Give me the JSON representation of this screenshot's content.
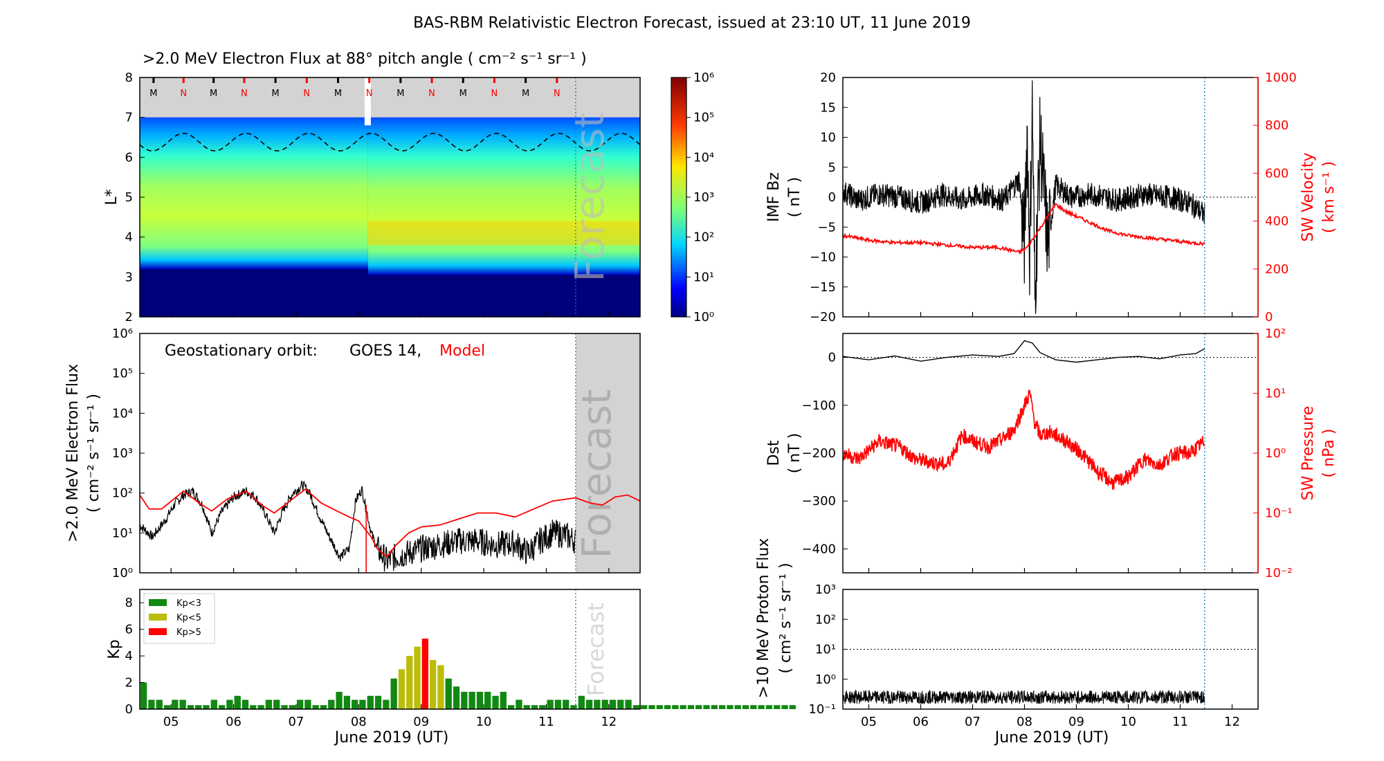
{
  "title": "BAS-RBM Relativistic Electron Forecast, issued at 23:10 UT, 11 June 2019",
  "colors": {
    "model": "#ff0000",
    "obs": "#000000",
    "kp_low": "#118811",
    "kp_mid": "#bcbc0a",
    "kp_high": "#ff0000",
    "grey": "#d3d3d3",
    "cutoff": "#1f77b4"
  },
  "date_axis": {
    "label": "June 2019 (UT)",
    "ticks": [
      "05",
      "06",
      "07",
      "08",
      "09",
      "10",
      "11",
      "12"
    ],
    "start": 4.5,
    "end": 12.5,
    "forecast_start": 11.47
  },
  "chart_data": [
    {
      "id": "flux_map",
      "type": "heatmap",
      "title": ">2.0 MeV Electron Flux at 88° pitch angle ( cm⁻² s⁻¹ sr⁻¹ )",
      "ylabel": "L*",
      "ylim": [
        2,
        8
      ],
      "yticks": [
        "2",
        "3",
        "4",
        "5",
        "6",
        "7",
        "8"
      ],
      "colorbar_ticks": [
        "10⁰",
        "10¹",
        "10²",
        "10³",
        "10⁴",
        "10⁵",
        "10⁶"
      ],
      "clim": [
        0,
        6
      ],
      "forecast_label": "Forecast",
      "mn_labels": [
        "M",
        "N",
        "M",
        "N",
        "M",
        "N",
        "M",
        "N",
        "M",
        "N",
        "M",
        "N",
        "M",
        "N"
      ],
      "mn_times": [
        4.72,
        5.2,
        5.68,
        6.17,
        6.67,
        7.17,
        7.67,
        8.17,
        8.67,
        9.17,
        9.67,
        10.17,
        10.67,
        11.17
      ]
    },
    {
      "id": "geo_flux",
      "type": "line",
      "ylabel": ">2.0 MeV Electron Flux",
      "ylabel2": "( cm⁻² s⁻¹ sr⁻¹ )",
      "ylim_log10": [
        0,
        6
      ],
      "yticks": [
        "10⁰",
        "10¹",
        "10²",
        "10³",
        "10⁴",
        "10⁵",
        "10⁶"
      ],
      "legend_prefix": "Geostationary orbit:",
      "legend_obs": "GOES 14,",
      "legend_model": "Model",
      "forecast_label": "Forecast",
      "series": [
        {
          "name": "Model",
          "x": [
            4.5,
            4.65,
            4.85,
            5.2,
            5.45,
            5.65,
            5.9,
            6.2,
            6.45,
            6.65,
            6.9,
            7.15,
            7.4,
            7.65,
            7.85,
            8.0,
            8.1,
            8.2,
            8.3,
            8.45,
            8.6,
            8.8,
            9.0,
            9.3,
            9.6,
            9.9,
            10.2,
            10.5,
            10.8,
            11.1,
            11.47,
            11.7,
            11.9,
            12.1,
            12.3,
            12.5
          ],
          "log10": [
            1.95,
            1.6,
            1.6,
            2.05,
            1.75,
            1.55,
            1.85,
            2.05,
            1.7,
            1.5,
            1.8,
            2.1,
            1.75,
            1.55,
            1.4,
            1.3,
            1.1,
            0.9,
            0.6,
            0.4,
            0.7,
            1.0,
            1.15,
            1.2,
            1.35,
            1.5,
            1.5,
            1.4,
            1.6,
            1.8,
            1.88,
            1.75,
            1.7,
            1.9,
            1.95,
            1.8
          ]
        },
        {
          "name": "GOES 14",
          "x": [
            4.5,
            4.7,
            4.9,
            5.05,
            5.2,
            5.35,
            5.5,
            5.65,
            5.8,
            6.0,
            6.2,
            6.35,
            6.5,
            6.65,
            6.8,
            6.95,
            7.1,
            7.2,
            7.35,
            7.5,
            7.7,
            7.85,
            7.95,
            8.05,
            8.12,
            8.2,
            8.3,
            8.45,
            8.6,
            8.8,
            9.0,
            9.3,
            9.6,
            9.9,
            10.2,
            10.5,
            10.7,
            10.9,
            11.1,
            11.3,
            11.47
          ],
          "log10": [
            1.2,
            0.9,
            1.3,
            1.7,
            1.95,
            2.05,
            1.7,
            1.0,
            1.5,
            1.9,
            2.05,
            1.9,
            1.5,
            1.0,
            1.6,
            2.0,
            2.2,
            2.05,
            1.5,
            1.0,
            0.4,
            0.6,
            1.8,
            2.1,
            1.6,
            1.0,
            0.6,
            0.3,
            0.4,
            0.5,
            0.6,
            0.7,
            0.8,
            0.8,
            0.7,
            0.75,
            0.5,
            0.8,
            1.0,
            0.95,
            0.8
          ]
        }
      ]
    },
    {
      "id": "kp",
      "type": "bar",
      "ylabel": "Kp",
      "ylim": [
        0,
        9
      ],
      "yticks": [
        "0",
        "2",
        "4",
        "6",
        "8"
      ],
      "legend": [
        "Kp<3",
        "Kp<5",
        "Kp>5"
      ],
      "forecast_label": "Forecast",
      "bar_start": 4.5,
      "bar_width_days": 0.125,
      "values": [
        2.0,
        0.7,
        0.7,
        0.3,
        0.7,
        0.7,
        0.3,
        0.3,
        0.3,
        0.7,
        0.3,
        0.7,
        1.0,
        0.7,
        0.3,
        0.3,
        0.7,
        0.7,
        0.3,
        0.3,
        0.7,
        0.7,
        0.3,
        0.3,
        0.7,
        1.3,
        1.0,
        0.7,
        0.7,
        1.0,
        1.0,
        0.7,
        2.3,
        3.0,
        4.0,
        4.7,
        5.3,
        3.7,
        3.3,
        2.3,
        1.7,
        1.3,
        1.3,
        1.3,
        1.3,
        1.0,
        1.3,
        0.3,
        0.7,
        0.3,
        0.3,
        0.3,
        0.7,
        0.7,
        0.7,
        0.3,
        1.0,
        0.7,
        0.7,
        0.7,
        0.7,
        0.7,
        0.7,
        0.3,
        0.3,
        0.3,
        0.3,
        0.3,
        0.3,
        0.3,
        0.3,
        0.3,
        0.3,
        0.3,
        0.3,
        0.3,
        0.3,
        0.3,
        0.3,
        0.3,
        0.3,
        0.3,
        0.3,
        0.3
      ]
    },
    {
      "id": "imf",
      "type": "line",
      "ylabel": "IMF Bz",
      "ylabel_unit": "( nT )",
      "ylim": [
        -20,
        20
      ],
      "yticks": [
        "−20",
        "−15",
        "−10",
        "−5",
        "0",
        "5",
        "10",
        "15",
        "20"
      ],
      "ylabel2": "SW Velocity",
      "ylabel2_unit": "( km s⁻¹ )",
      "ylim2": [
        0,
        1000
      ],
      "yticks2": [
        "0",
        "200",
        "400",
        "600",
        "800",
        "1000"
      ],
      "series": [
        {
          "name": "IMF Bz",
          "x": [
            4.5,
            4.8,
            5.2,
            5.6,
            6.0,
            6.4,
            6.8,
            7.2,
            7.6,
            7.9,
            8.0,
            8.05,
            8.1,
            8.15,
            8.2,
            8.3,
            8.45,
            8.6,
            8.9,
            9.3,
            9.8,
            10.3,
            10.8,
            11.2,
            11.47
          ],
          "bz": [
            1.0,
            -0.5,
            0.5,
            0,
            -1.0,
            0.5,
            -0.5,
            0.5,
            -0.5,
            3,
            -8,
            12,
            -10,
            16,
            -17,
            10,
            -8,
            2,
            0,
            0.5,
            -0.5,
            0.5,
            0,
            -1,
            -3
          ]
        },
        {
          "name": "SW Velocity",
          "x": [
            4.5,
            5.0,
            5.5,
            6.0,
            6.5,
            7.0,
            7.5,
            7.9,
            8.05,
            8.3,
            8.6,
            8.8,
            9.2,
            9.6,
            10.0,
            10.4,
            10.8,
            11.2,
            11.47
          ],
          "v": [
            340,
            320,
            310,
            310,
            300,
            290,
            290,
            270,
            290,
            370,
            470,
            440,
            400,
            360,
            340,
            330,
            320,
            310,
            305
          ]
        }
      ]
    },
    {
      "id": "dst",
      "type": "line",
      "ylabel": "Dst",
      "ylabel_unit": "( nT )",
      "ylim": [
        -450,
        50
      ],
      "yticks": [
        "0",
        "−100",
        "−200",
        "−300",
        "−400"
      ],
      "ylabel2": "SW Pressure",
      "ylabel2_unit": "( nPa )",
      "ylim2_log10": [
        -2,
        2
      ],
      "yticks2": [
        "10⁻²",
        "10⁻¹",
        "10⁰",
        "10¹",
        "10²"
      ],
      "series": [
        {
          "name": "Dst",
          "x": [
            4.5,
            5.0,
            5.5,
            6.0,
            6.5,
            7.0,
            7.5,
            7.8,
            8.0,
            8.15,
            8.3,
            8.6,
            9.0,
            9.4,
            9.8,
            10.2,
            10.6,
            11.0,
            11.3,
            11.47
          ],
          "dst": [
            2,
            -5,
            3,
            -8,
            0,
            5,
            2,
            8,
            35,
            30,
            10,
            -5,
            -10,
            -5,
            0,
            2,
            -3,
            5,
            8,
            18
          ]
        },
        {
          "name": "SW Pressure",
          "x": [
            4.5,
            4.8,
            5.2,
            5.6,
            5.9,
            6.2,
            6.5,
            6.8,
            7.0,
            7.3,
            7.6,
            7.8,
            8.0,
            8.1,
            8.2,
            8.3,
            8.5,
            8.8,
            9.1,
            9.4,
            9.7,
            10.0,
            10.3,
            10.6,
            10.9,
            11.2,
            11.47
          ],
          "log10": [
            0,
            -0.1,
            0.2,
            0.1,
            -0.1,
            -0.15,
            -0.2,
            0.3,
            0.2,
            0.1,
            0.25,
            0.4,
            0.8,
            1.0,
            0.5,
            0.3,
            0.35,
            0.2,
            0,
            -0.3,
            -0.5,
            -0.4,
            -0.1,
            -0.2,
            0,
            0,
            0.2
          ]
        }
      ]
    },
    {
      "id": "proton",
      "type": "line",
      "ylabel": ">10 MeV Proton Flux",
      "ylabel_unit": "( cm² s⁻¹ sr⁻¹ )",
      "ylim_log10": [
        -1,
        3
      ],
      "yticks": [
        "10⁻¹",
        "10⁰",
        "10¹",
        "10²",
        "10³"
      ],
      "threshold_log10": 1,
      "series": [
        {
          "name": ">10 MeV Proton Flux",
          "x": [
            4.5,
            11.47
          ],
          "log10": [
            -0.6,
            -0.6
          ]
        }
      ]
    }
  ]
}
